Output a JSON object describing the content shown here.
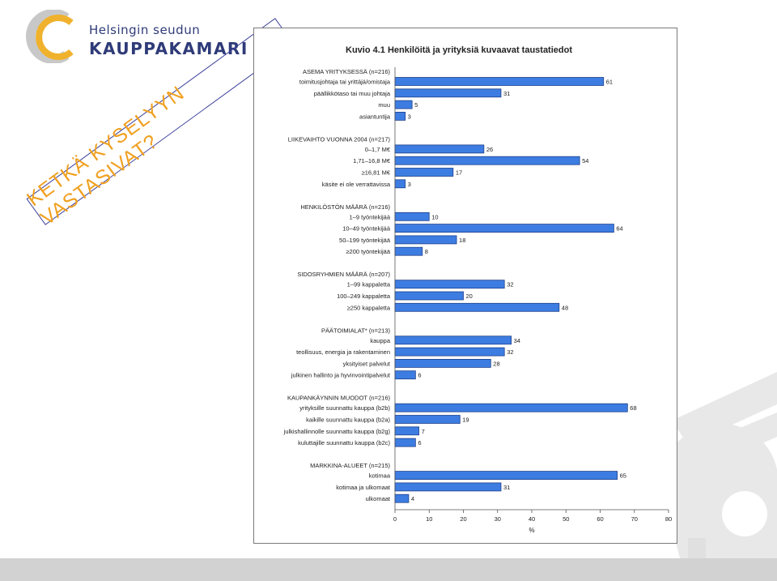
{
  "logo": {
    "line1": "Helsingin seudun",
    "line2": "KAUPPAKAMARI"
  },
  "banner": {
    "text": "KETKÄ KYSELYYN VASTASIVAT?"
  },
  "colors": {
    "bar_fill": "#3d7de2",
    "bar_stroke": "#1d3f8a",
    "banner_text": "#f0a020",
    "logo_blue": "#2f3b78",
    "logo_gold": "#f0b22c",
    "logo_grey": "#9a9a9a"
  },
  "chart_data": {
    "type": "bar",
    "orientation": "horizontal",
    "title": "Kuvio 4.1 Henkilöitä ja yrityksiä kuvaavat taustatiedot",
    "xlabel": "%",
    "xlim": [
      0,
      80
    ],
    "xticks": [
      "0",
      "10",
      "20",
      "30",
      "40",
      "50",
      "60",
      "70",
      "80"
    ],
    "grid": false,
    "groups": [
      {
        "heading": "ASEMA YRITYKSESSÄ (n=216)",
        "categories": [
          "toimitusjohtaja tai yrittäjä/omistaja",
          "päällikkötaso tai muu johtaja",
          "muu",
          "asiantuntija"
        ],
        "values": [
          61,
          31,
          5,
          3
        ]
      },
      {
        "heading": "LIIKEVAIHTO VUONNA 2004 (n=217)",
        "categories": [
          "0–1,7 M€",
          "1,71–16,8 M€",
          "≥16,81 M€",
          "käsite ei ole verrattavissa"
        ],
        "values": [
          26,
          54,
          17,
          3
        ]
      },
      {
        "heading": "HENKILÖSTÖN MÄÄRÄ (n=216)",
        "categories": [
          "1–9 työntekijää",
          "10–49 työntekijää",
          "50–199 työntekijää",
          "≥200 työntekijää"
        ],
        "values": [
          10,
          64,
          18,
          8
        ]
      },
      {
        "heading": "SIDOSRYHMIEN MÄÄRÄ (n=207)",
        "categories": [
          "1–99 kappaletta",
          "100–249 kappaletta",
          "≥250 kappaletta"
        ],
        "values": [
          32,
          20,
          48
        ]
      },
      {
        "heading": "PÄÄTOIMIALAT* (n=213)",
        "categories": [
          "kauppa",
          "teollisuus, energia ja rakentaminen",
          "yksityiset palvelut",
          "julkinen hallinto ja hyvinvointipalvelut"
        ],
        "values": [
          34,
          32,
          28,
          6
        ]
      },
      {
        "heading": "KAUPANKÄYNNIN MUODOT (n=216)",
        "categories": [
          "yrityksille suunnattu kauppa (b2b)",
          "kaikille suunnattu kauppa (b2a)",
          "julkishallinnolle suunnattu kauppa (b2g)",
          "kuluttajille suunnattu kauppa (b2c)"
        ],
        "values": [
          68,
          19,
          7,
          6
        ]
      },
      {
        "heading": "MARKKINA-ALUEET (n=215)",
        "categories": [
          "kotimaa",
          "kotimaa ja ulkomaat",
          "ulkomaat"
        ],
        "values": [
          65,
          31,
          4
        ]
      }
    ]
  }
}
